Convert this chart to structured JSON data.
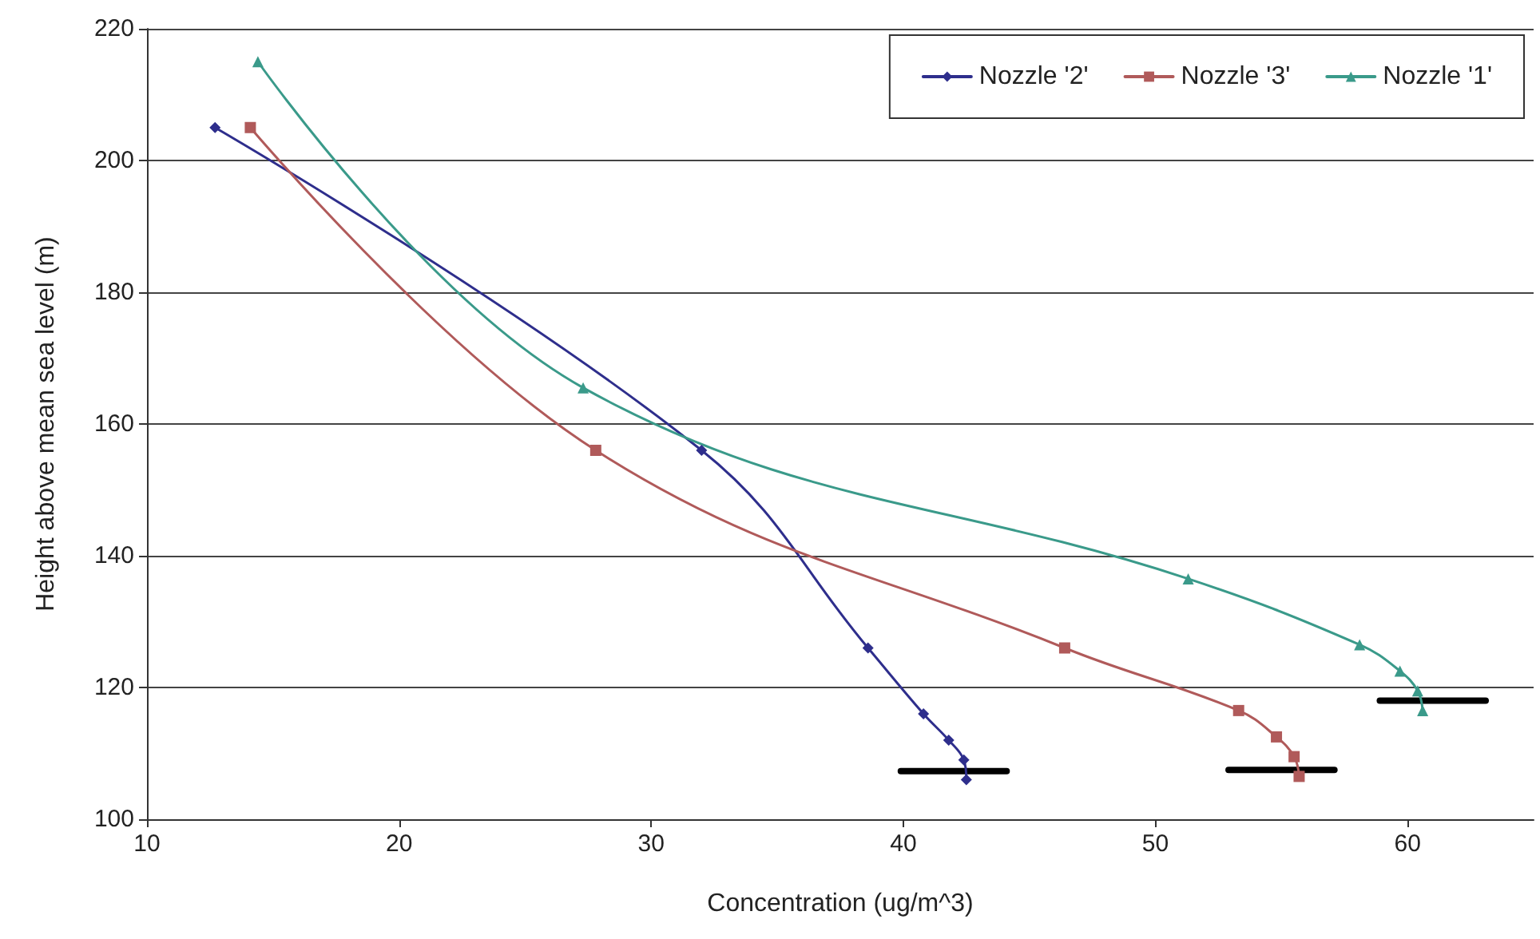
{
  "chart_data": {
    "type": "line",
    "xlabel": "Concentration (ug/m^3)",
    "ylabel": "Height above mean sea level (m)",
    "xlim": [
      10,
      65
    ],
    "xticks": [
      10,
      20,
      30,
      40,
      50,
      60
    ],
    "ylim": [
      100,
      220
    ],
    "yticks": [
      100,
      120,
      140,
      160,
      180,
      200,
      220
    ],
    "grid": "y",
    "legend": "top right",
    "line_style": "solid",
    "series": [
      {
        "name": "Nozzle '2'",
        "color": "#2e2e8c",
        "marker": "diamond",
        "x": [
          12.7,
          32.0,
          38.6,
          40.8,
          41.8,
          42.4,
          42.5
        ],
        "values": [
          205,
          156,
          126,
          116,
          112,
          109,
          106
        ]
      },
      {
        "name": "Nozzle '3'",
        "color": "#b05a5a",
        "marker": "square",
        "x": [
          14.1,
          27.8,
          46.4,
          53.3,
          54.8,
          55.5,
          55.7
        ],
        "values": [
          205,
          156,
          126,
          116.5,
          112.5,
          109.5,
          106.5
        ]
      },
      {
        "name": "Nozzle '1'",
        "color": "#3a9a8a",
        "marker": "triangle",
        "x": [
          14.4,
          27.3,
          51.3,
          58.1,
          59.7,
          60.4,
          60.6
        ],
        "values": [
          215,
          165.5,
          136.5,
          126.5,
          122.5,
          119.5,
          116.5
        ]
      },
      {
        "color": "#000000",
        "marker": "none",
        "x": [
          39.9,
          44.1
        ],
        "values": [
          107.3,
          107.3
        ]
      },
      {
        "color": "#000000",
        "marker": "none",
        "x": [
          52.9,
          57.1
        ],
        "values": [
          107.5,
          107.5
        ]
      },
      {
        "color": "#000000",
        "marker": "none",
        "x": [
          58.9,
          63.1
        ],
        "values": [
          118,
          118
        ]
      }
    ]
  }
}
